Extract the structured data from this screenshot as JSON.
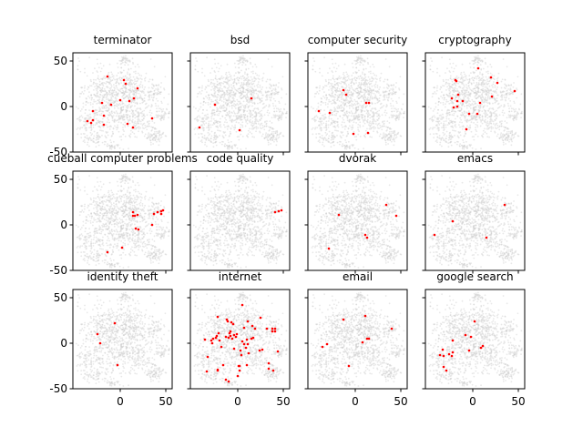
{
  "figure": {
    "background": "#ffffff",
    "highlight_color": "#ff0000",
    "background_points_color": "#cccccc"
  },
  "chart_data": [
    {
      "type": "scatter",
      "title": "terminator",
      "xlim": [
        -52,
        57
      ],
      "ylim": [
        -50,
        59
      ],
      "xticks": [
        0,
        50
      ],
      "yticks": [
        50,
        0,
        -50
      ],
      "points": [
        [
          -14,
          33
        ],
        [
          4,
          29
        ],
        [
          6,
          25
        ],
        [
          19,
          20
        ],
        [
          15,
          9
        ],
        [
          10,
          6
        ],
        [
          0,
          7
        ],
        [
          -10,
          2
        ],
        [
          -20,
          4
        ],
        [
          -30,
          -5
        ],
        [
          -18,
          -10
        ],
        [
          -36,
          -16
        ],
        [
          -32,
          -18
        ],
        [
          -30,
          -15
        ],
        [
          -18,
          -20
        ],
        [
          8,
          -19
        ],
        [
          14,
          -23
        ],
        [
          35,
          -13
        ]
      ]
    },
    {
      "type": "scatter",
      "title": "bsd",
      "xlim": [
        -52,
        57
      ],
      "ylim": [
        -50,
        59
      ],
      "xticks": [
        0,
        50
      ],
      "yticks": [
        50,
        0,
        -50
      ],
      "points": [
        [
          -25,
          2
        ],
        [
          15,
          9
        ],
        [
          -42,
          -23
        ],
        [
          2,
          -26
        ]
      ]
    },
    {
      "type": "scatter",
      "title": "computer security",
      "xlim": [
        -52,
        57
      ],
      "ylim": [
        -50,
        59
      ],
      "xticks": [
        0,
        50
      ],
      "yticks": [
        50,
        0,
        -50
      ],
      "points": [
        [
          -13,
          18
        ],
        [
          -10,
          13
        ],
        [
          12,
          4
        ],
        [
          15,
          4
        ],
        [
          -40,
          -5
        ],
        [
          -28,
          -7
        ],
        [
          -2,
          -30
        ],
        [
          14,
          -29
        ]
      ]
    },
    {
      "type": "scatter",
      "title": "cryptography",
      "xlim": [
        -52,
        57
      ],
      "ylim": [
        -50,
        59
      ],
      "xticks": [
        0,
        50
      ],
      "yticks": [
        50,
        0,
        -50
      ],
      "points": [
        [
          6,
          42
        ],
        [
          -19,
          29
        ],
        [
          -18,
          28
        ],
        [
          20,
          32
        ],
        [
          27,
          26
        ],
        [
          46,
          17
        ],
        [
          -16,
          13
        ],
        [
          -23,
          9
        ],
        [
          -17,
          6
        ],
        [
          -11,
          6
        ],
        [
          8,
          4
        ],
        [
          21,
          11
        ],
        [
          -21,
          -1
        ],
        [
          -17,
          0
        ],
        [
          -4,
          -8
        ],
        [
          5,
          -8
        ],
        [
          -7,
          -25
        ]
      ]
    },
    {
      "type": "scatter",
      "title": "cueball computer problems",
      "xlim": [
        -52,
        57
      ],
      "ylim": [
        -50,
        59
      ],
      "xticks": [
        0,
        50
      ],
      "yticks": [
        50,
        0,
        -50
      ],
      "points": [
        [
          14,
          14
        ],
        [
          14,
          10
        ],
        [
          16,
          10
        ],
        [
          19,
          11
        ],
        [
          37,
          12
        ],
        [
          41,
          14
        ],
        [
          45,
          15
        ],
        [
          47,
          16
        ],
        [
          45,
          12
        ],
        [
          35,
          0
        ],
        [
          17,
          -4
        ],
        [
          20,
          -5
        ],
        [
          2,
          -25
        ],
        [
          -14,
          -30
        ]
      ]
    },
    {
      "type": "scatter",
      "title": "code quality",
      "xlim": [
        -52,
        57
      ],
      "ylim": [
        -50,
        59
      ],
      "xticks": [
        0,
        50
      ],
      "yticks": [
        50,
        0,
        -50
      ],
      "points": [
        [
          41,
          14
        ],
        [
          45,
          15
        ],
        [
          48,
          16
        ]
      ]
    },
    {
      "type": "scatter",
      "title": "dvorak",
      "xlim": [
        -52,
        57
      ],
      "ylim": [
        -50,
        59
      ],
      "xticks": [
        0,
        50
      ],
      "yticks": [
        50,
        0,
        -50
      ],
      "points": [
        [
          34,
          22
        ],
        [
          45,
          10
        ],
        [
          -18,
          11
        ],
        [
          11,
          -11
        ],
        [
          13,
          -14
        ],
        [
          -29,
          -26
        ]
      ]
    },
    {
      "type": "scatter",
      "title": "emacs",
      "xlim": [
        -52,
        57
      ],
      "ylim": [
        -50,
        59
      ],
      "xticks": [
        0,
        50
      ],
      "yticks": [
        50,
        0,
        -50
      ],
      "points": [
        [
          35,
          22
        ],
        [
          -22,
          4
        ],
        [
          -42,
          -11
        ],
        [
          15,
          -14
        ]
      ]
    },
    {
      "type": "scatter",
      "title": "identity theft",
      "xlim": [
        -52,
        57
      ],
      "ylim": [
        -50,
        59
      ],
      "xticks": [
        0,
        50
      ],
      "yticks": [
        50,
        0,
        -50
      ],
      "points": [
        [
          -6,
          22
        ],
        [
          -25,
          10
        ],
        [
          -22,
          0
        ],
        [
          -3,
          -24
        ]
      ]
    },
    {
      "type": "scatter",
      "title": "internet",
      "xlim": [
        -52,
        57
      ],
      "ylim": [
        -50,
        59
      ],
      "xticks": [
        0,
        50
      ],
      "yticks": [
        50,
        0,
        -50
      ],
      "points": [
        [
          5,
          42
        ],
        [
          -22,
          29
        ],
        [
          -12,
          26
        ],
        [
          -11,
          24
        ],
        [
          -7,
          23
        ],
        [
          -5,
          21
        ],
        [
          11,
          24
        ],
        [
          25,
          28
        ],
        [
          16,
          19
        ],
        [
          7,
          17
        ],
        [
          19,
          16
        ],
        [
          32,
          16
        ],
        [
          38,
          16
        ],
        [
          41,
          16
        ],
        [
          38,
          13
        ],
        [
          41,
          13
        ],
        [
          -8,
          13
        ],
        [
          -9,
          11
        ],
        [
          -13,
          7
        ],
        [
          -10,
          6
        ],
        [
          -8,
          8
        ],
        [
          -4,
          9
        ],
        [
          -1,
          10
        ],
        [
          -2,
          7
        ],
        [
          -6,
          5
        ],
        [
          -21,
          11
        ],
        [
          -23,
          8
        ],
        [
          -24,
          6
        ],
        [
          -27,
          5
        ],
        [
          -29,
          3
        ],
        [
          -36,
          4
        ],
        [
          -28,
          0
        ],
        [
          -20,
          3
        ],
        [
          5,
          2
        ],
        [
          10,
          4
        ],
        [
          15,
          5
        ],
        [
          17,
          6
        ],
        [
          11,
          -1
        ],
        [
          7,
          -1
        ],
        [
          9,
          -5
        ],
        [
          -4,
          -6
        ],
        [
          -18,
          -4
        ],
        [
          3,
          -8
        ],
        [
          24,
          -8
        ],
        [
          27,
          -7
        ],
        [
          44,
          -9
        ],
        [
          12,
          -11
        ],
        [
          4,
          -13
        ],
        [
          -33,
          -15
        ],
        [
          1,
          -25
        ],
        [
          2,
          -25
        ],
        [
          -16,
          -24
        ],
        [
          10,
          -24
        ],
        [
          34,
          -22
        ],
        [
          34,
          -28
        ],
        [
          39,
          -30
        ],
        [
          -22,
          -29
        ],
        [
          -22,
          -30
        ],
        [
          -34,
          -31
        ],
        [
          2,
          -30
        ],
        [
          0,
          -36
        ],
        [
          -13,
          -40
        ],
        [
          -10,
          -42
        ]
      ]
    },
    {
      "type": "scatter",
      "title": "email",
      "xlim": [
        -52,
        57
      ],
      "ylim": [
        -50,
        59
      ],
      "xticks": [
        0,
        50
      ],
      "yticks": [
        50,
        0,
        -50
      ],
      "points": [
        [
          -13,
          26
        ],
        [
          11,
          30
        ],
        [
          40,
          16
        ],
        [
          13,
          5
        ],
        [
          15,
          5
        ],
        [
          8,
          1
        ],
        [
          -31,
          -1
        ],
        [
          -36,
          -4
        ],
        [
          -7,
          -25
        ]
      ]
    },
    {
      "type": "scatter",
      "title": "google search",
      "xlim": [
        -52,
        57
      ],
      "ylim": [
        -50,
        59
      ],
      "xticks": [
        0,
        50
      ],
      "yticks": [
        50,
        0,
        -50
      ],
      "points": [
        [
          2,
          24
        ],
        [
          -8,
          9
        ],
        [
          -2,
          7
        ],
        [
          -22,
          3
        ],
        [
          11,
          -3
        ],
        [
          9,
          -5
        ],
        [
          -4,
          -8
        ],
        [
          -22,
          -10
        ],
        [
          -33,
          -7
        ],
        [
          -26,
          -12
        ],
        [
          -23,
          -14
        ],
        [
          -32,
          -14
        ],
        [
          -36,
          -13
        ],
        [
          -32,
          -26
        ],
        [
          -29,
          -30
        ]
      ]
    }
  ]
}
